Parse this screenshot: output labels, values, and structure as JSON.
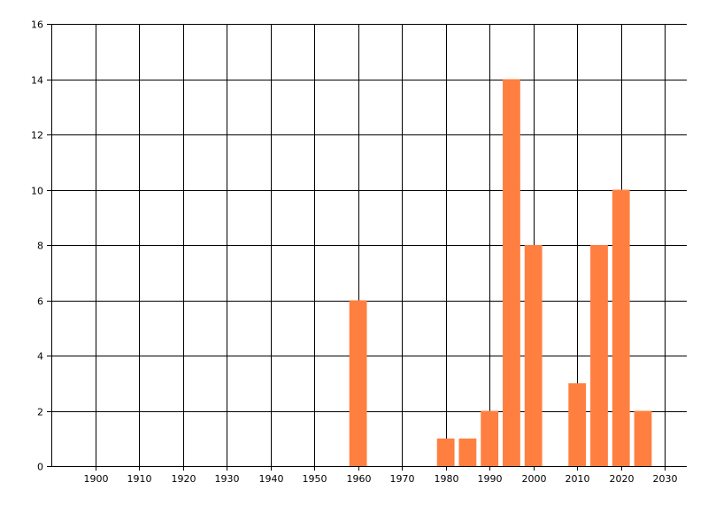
{
  "chart_data": {
    "type": "bar",
    "title": "",
    "xlabel": "",
    "ylabel": "",
    "xlim": [
      1890,
      2035
    ],
    "ylim": [
      0,
      16
    ],
    "x_ticks": [
      1900,
      1910,
      1920,
      1930,
      1940,
      1950,
      1960,
      1970,
      1980,
      1990,
      2000,
      2010,
      2020,
      2030
    ],
    "y_ticks": [
      0,
      2,
      4,
      6,
      8,
      10,
      12,
      14,
      16
    ],
    "grid": true,
    "bar_color": "#FF7F41",
    "bar_width_years": 4,
    "x": [
      1960,
      1980,
      1985,
      1990,
      1995,
      2000,
      2010,
      2015,
      2020,
      2025
    ],
    "values": [
      6,
      1,
      1,
      2,
      14,
      8,
      3,
      8,
      10,
      2
    ]
  }
}
